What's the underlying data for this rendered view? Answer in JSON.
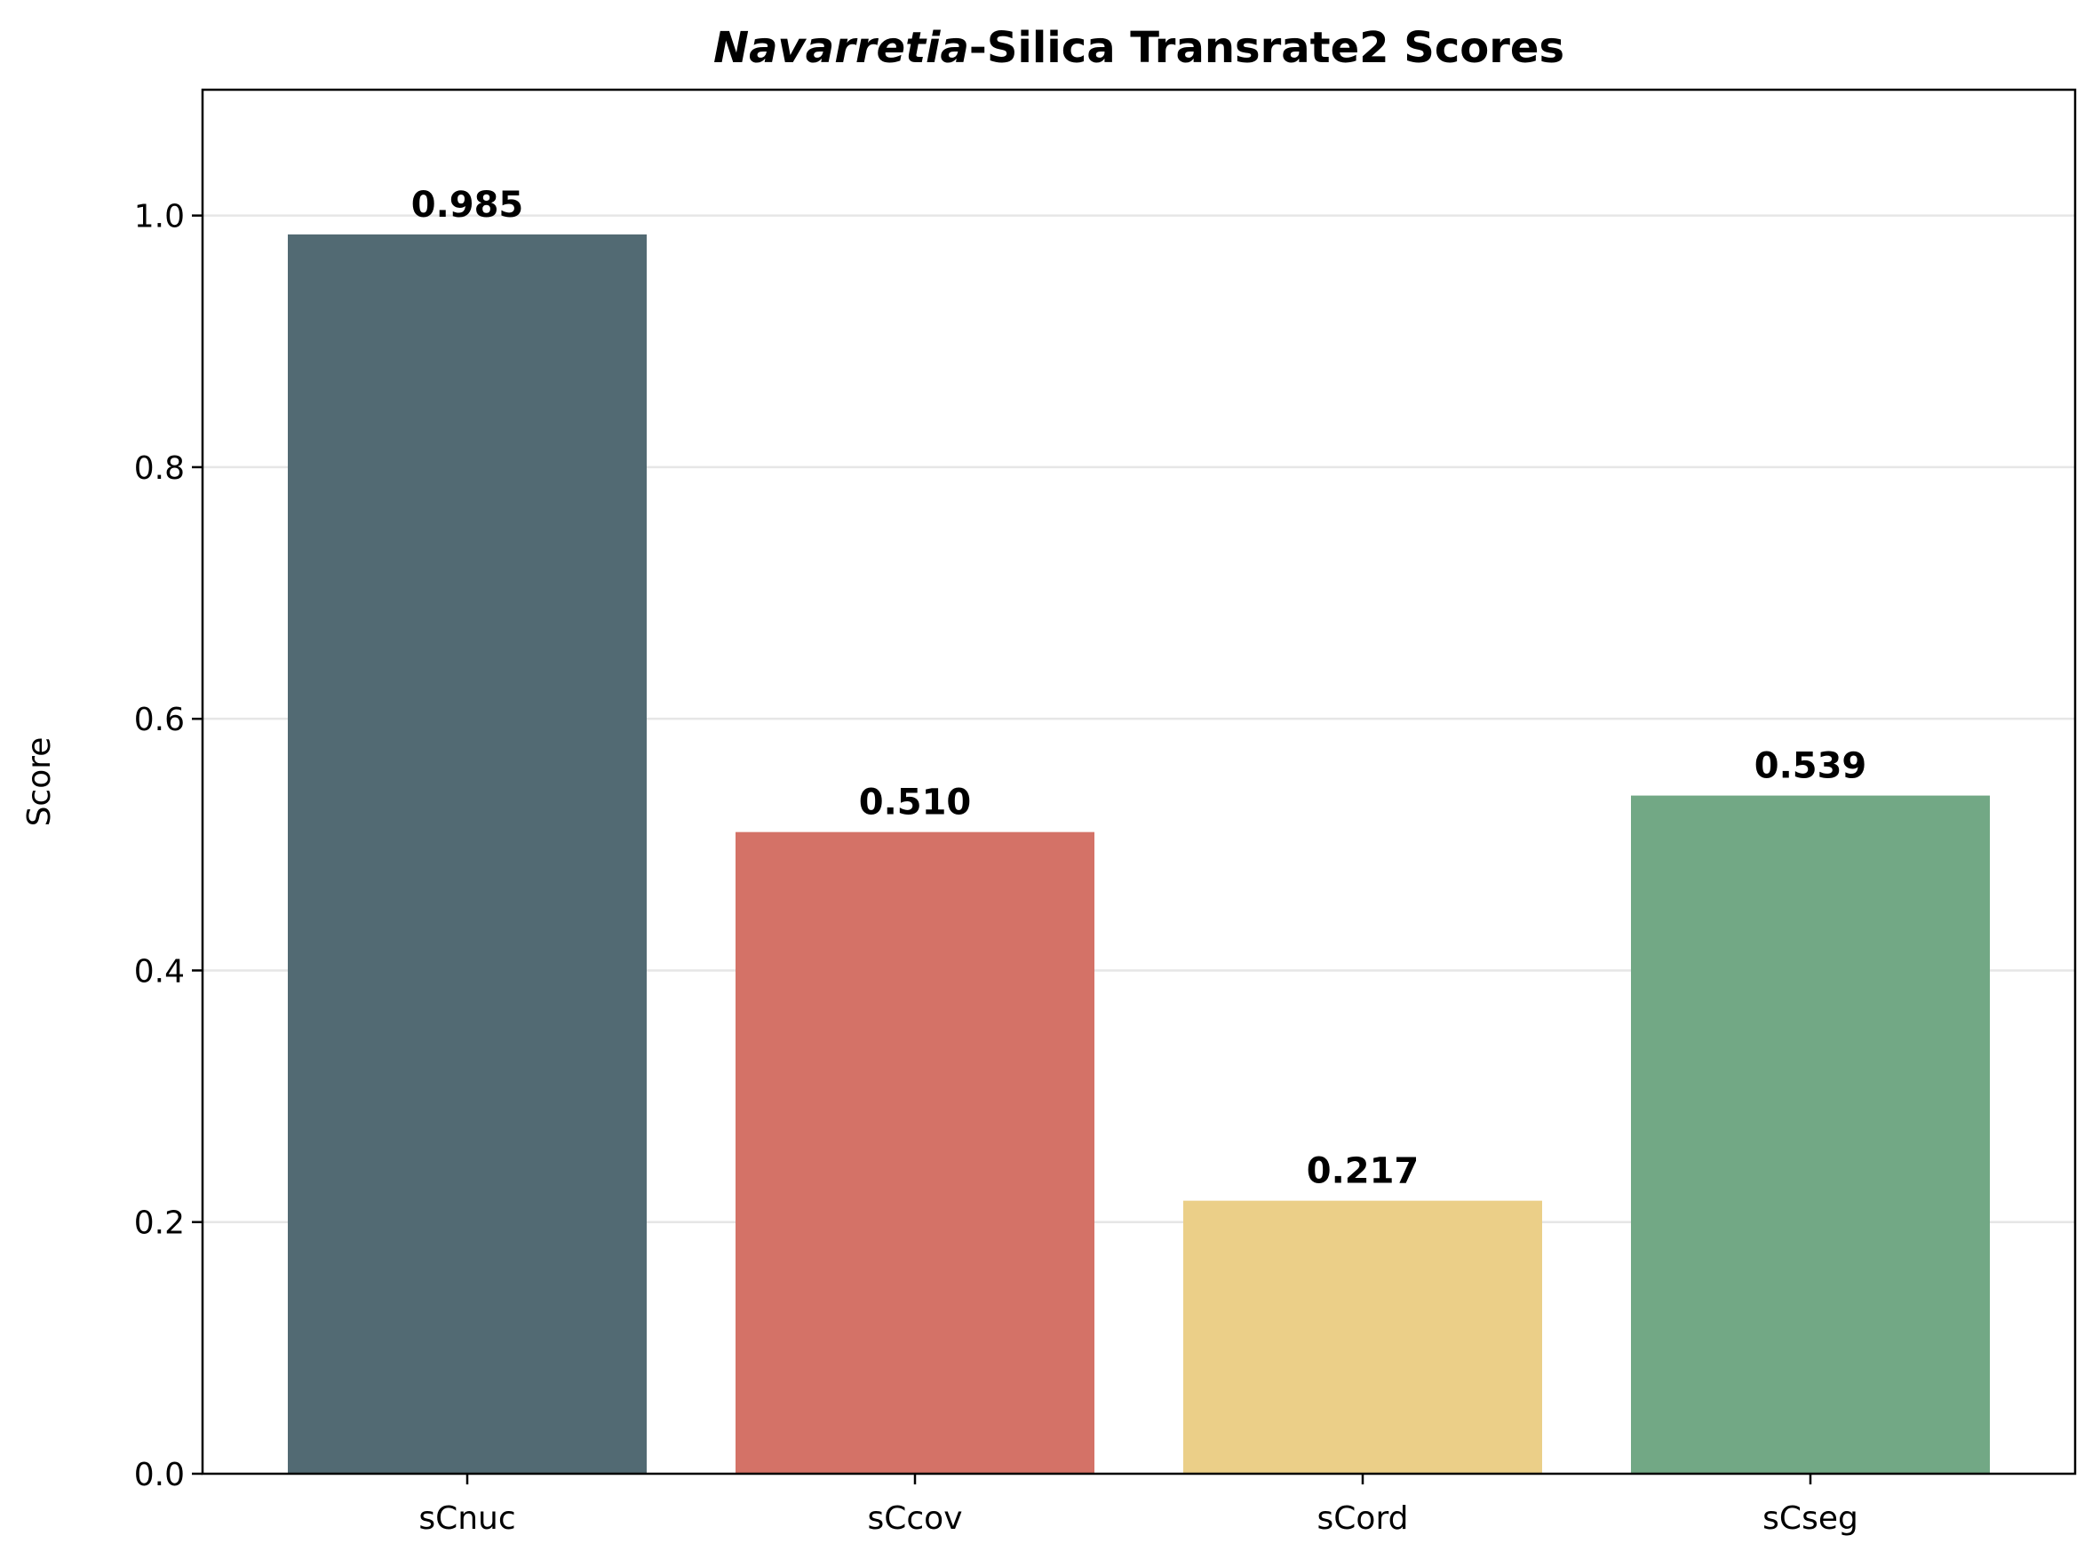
{
  "chart_data": {
    "type": "bar",
    "title": {
      "italic_part": "Navarretia",
      "rest": "-Silica Transrate2 Scores"
    },
    "ylabel": "Score",
    "xlabel": "",
    "ylim": [
      0,
      1.1
    ],
    "yticks": [
      "0.0",
      "0.2",
      "0.4",
      "0.6",
      "0.8",
      "1.0"
    ],
    "ytick_values": [
      0.0,
      0.2,
      0.4,
      0.6,
      0.8,
      1.0
    ],
    "grid": "horizontal",
    "categories": [
      "sCnuc",
      "sCcov",
      "sCord",
      "sCseg"
    ],
    "values": [
      0.985,
      0.51,
      0.217,
      0.539
    ],
    "value_labels": [
      "0.985",
      "0.510",
      "0.217",
      "0.539"
    ],
    "colors": [
      "#526a73",
      "#d47267",
      "#ebcf88",
      "#72a885"
    ]
  }
}
